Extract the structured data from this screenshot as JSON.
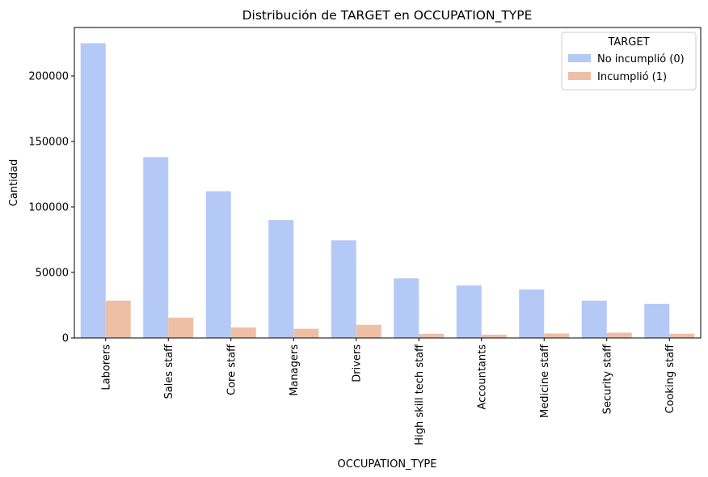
{
  "chart_data": {
    "type": "bar",
    "title": "Distribución de TARGET en OCCUPATION_TYPE",
    "xlabel": "OCCUPATION_TYPE",
    "ylabel": "Cantidad",
    "ylim": [
      0,
      237000
    ],
    "yticks": [
      0,
      50000,
      100000,
      150000,
      200000
    ],
    "categories": [
      "Laborers",
      "Sales staff",
      "Core staff",
      "Managers",
      "Drivers",
      "High skill tech staff",
      "Accountants",
      "Medicine staff",
      "Security staff",
      "Cooking staff"
    ],
    "series": [
      {
        "name": "No incumplió (0)",
        "color": "#b4c9f5",
        "values": [
          225000,
          138000,
          112000,
          90000,
          74500,
          45500,
          40000,
          37000,
          28500,
          26000
        ]
      },
      {
        "name": "Incumplió (1)",
        "color": "#efbfa5",
        "values": [
          28500,
          15500,
          8000,
          7000,
          10000,
          3200,
          2500,
          3400,
          4000,
          3200
        ]
      }
    ],
    "legend": {
      "title": "TARGET",
      "placement": "top-right"
    },
    "grid": false
  }
}
